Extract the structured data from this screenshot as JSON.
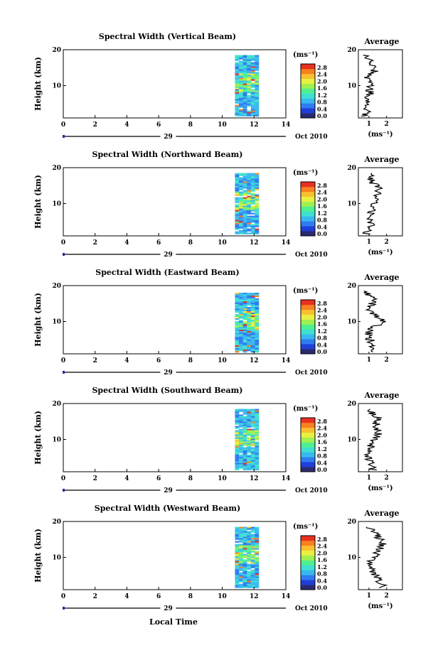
{
  "chart_data": [
    {
      "type": "heatmap",
      "title": "Spectral Width (Vertical Beam)",
      "ylabel": "Height (km)",
      "x_ticks": [
        "0",
        "2",
        "4",
        "6",
        "8",
        "10",
        "12",
        "14"
      ],
      "xlim": [
        0,
        14
      ],
      "y_ticks": [
        "20",
        "10"
      ],
      "ylim": [
        1,
        20
      ],
      "date_day": "29",
      "date_suffix": "Oct 2010",
      "data_time_range": [
        10.8,
        12.3
      ],
      "data_height_range": [
        1.5,
        18.5
      ],
      "colorbar": {
        "unit": "(ms⁻¹)",
        "ticks": [
          "2.8",
          "2.4",
          "2.0",
          "1.6",
          "1.2",
          "0.8",
          "0.4",
          "0.0"
        ],
        "range": [
          0,
          2.8
        ]
      },
      "profile": {
        "title": "Average",
        "x_ticks": [
          "1",
          "2"
        ],
        "xlim": [
          0.4,
          2.9
        ],
        "xlabel": "(ms⁻¹)",
        "y_ticks": [
          "20",
          "10"
        ],
        "heights": [
          2,
          4,
          6,
          8,
          10,
          12,
          14,
          16,
          18
        ],
        "values": [
          0.8,
          1.0,
          0.9,
          1.1,
          1.0,
          0.9,
          1.3,
          1.1,
          0.9
        ]
      }
    },
    {
      "type": "heatmap",
      "title": "Spectral Width (Northward Beam)",
      "ylabel": "Height (km)",
      "x_ticks": [
        "0",
        "2",
        "4",
        "6",
        "8",
        "10",
        "12",
        "14"
      ],
      "xlim": [
        0,
        14
      ],
      "y_ticks": [
        "20",
        "10"
      ],
      "ylim": [
        1,
        20
      ],
      "date_day": "29",
      "date_suffix": "Oct 2010",
      "data_time_range": [
        10.8,
        12.3
      ],
      "data_height_range": [
        1.5,
        18.5
      ],
      "colorbar": {
        "unit": "(ms⁻¹)",
        "ticks": [
          "2.8",
          "2.4",
          "2.0",
          "1.6",
          "1.2",
          "0.8",
          "0.4",
          "0.0"
        ],
        "range": [
          0,
          2.8
        ]
      },
      "profile": {
        "title": "Average",
        "x_ticks": [
          "1",
          "2"
        ],
        "xlim": [
          0.4,
          2.9
        ],
        "xlabel": "(ms⁻¹)",
        "y_ticks": [
          "20",
          "10"
        ],
        "heights": [
          2,
          4,
          6,
          8,
          10,
          12,
          14,
          16,
          18
        ],
        "values": [
          0.9,
          1.1,
          1.0,
          1.2,
          1.3,
          1.4,
          1.6,
          1.2,
          1.0
        ]
      }
    },
    {
      "type": "heatmap",
      "title": "Spectral Width (Eastward Beam)",
      "ylabel": "Height (km)",
      "x_ticks": [
        "0",
        "2",
        "4",
        "6",
        "8",
        "10",
        "12",
        "14"
      ],
      "xlim": [
        0,
        14
      ],
      "y_ticks": [
        "20",
        "10"
      ],
      "ylim": [
        1,
        20
      ],
      "date_day": "29",
      "date_suffix": "Oct 2010",
      "data_time_range": [
        10.8,
        12.3
      ],
      "data_height_range": [
        1.5,
        18.0
      ],
      "colorbar": {
        "unit": "(ms⁻¹)",
        "ticks": [
          "2.8",
          "2.4",
          "2.0",
          "1.6",
          "1.2",
          "0.8",
          "0.4",
          "0.0"
        ],
        "range": [
          0,
          2.8
        ]
      },
      "profile": {
        "title": "Average",
        "x_ticks": [
          "1",
          "2"
        ],
        "xlim": [
          0.4,
          2.9
        ],
        "xlabel": "",
        "y_ticks": [
          "20",
          "10"
        ],
        "heights": [
          2,
          4,
          6,
          8,
          10,
          12,
          14,
          16,
          18
        ],
        "values": [
          1.0,
          1.2,
          0.9,
          1.1,
          1.8,
          1.2,
          1.0,
          1.3,
          0.9
        ]
      }
    },
    {
      "type": "heatmap",
      "title": "Spectral Width (Southward Beam)",
      "ylabel": "Height (km)",
      "x_ticks": [
        "0",
        "2",
        "4",
        "6",
        "8",
        "10",
        "12",
        "14"
      ],
      "xlim": [
        0,
        14
      ],
      "y_ticks": [
        "20",
        "10"
      ],
      "ylim": [
        1,
        20
      ],
      "date_day": "29",
      "date_suffix": "Oct 2010",
      "data_time_range": [
        10.8,
        12.3
      ],
      "data_height_range": [
        1.5,
        18.5
      ],
      "colorbar": {
        "unit": "(ms⁻¹)",
        "ticks": [
          "2.8",
          "2.4",
          "2.0",
          "1.6",
          "1.2",
          "0.8",
          "0.4",
          "0.0"
        ],
        "range": [
          0,
          2.8
        ]
      },
      "profile": {
        "title": "Average",
        "x_ticks": [
          "1",
          "2"
        ],
        "xlim": [
          0.4,
          2.9
        ],
        "xlabel": "(ms⁻¹)",
        "y_ticks": [
          "20",
          "10"
        ],
        "heights": [
          2,
          4,
          6,
          8,
          10,
          12,
          14,
          16,
          18
        ],
        "values": [
          1.2,
          1.0,
          0.9,
          1.1,
          1.3,
          1.6,
          1.4,
          1.5,
          1.0
        ]
      }
    },
    {
      "type": "heatmap",
      "title": "Spectral Width (Westward Beam)",
      "ylabel": "Height (km)",
      "x_ticks": [
        "0",
        "2",
        "4",
        "6",
        "8",
        "10",
        "12",
        "14"
      ],
      "xlim": [
        0,
        14
      ],
      "y_ticks": [
        "20",
        "10"
      ],
      "ylim": [
        1,
        20
      ],
      "date_day": "29",
      "date_suffix": "Oct 2010",
      "data_time_range": [
        10.8,
        12.3
      ],
      "data_height_range": [
        1.5,
        18.5
      ],
      "colorbar": {
        "unit": "(ms⁻¹)",
        "ticks": [
          "2.8",
          "2.4",
          "2.0",
          "1.6",
          "1.2",
          "0.8",
          "0.4",
          "0.0"
        ],
        "range": [
          0,
          2.8
        ]
      },
      "profile": {
        "title": "Average",
        "x_ticks": [
          "1",
          "2"
        ],
        "xlim": [
          0.4,
          2.9
        ],
        "xlabel": "(ms⁻¹)",
        "y_ticks": [
          "20",
          "10"
        ],
        "heights": [
          2,
          4,
          6,
          8,
          10,
          12,
          14,
          16,
          18
        ],
        "values": [
          1.8,
          1.5,
          1.2,
          1.0,
          1.3,
          1.6,
          1.8,
          1.5,
          1.1
        ]
      }
    }
  ],
  "figure": {
    "xlabel": "Local Time",
    "colormap": [
      "#2a2a70",
      "#1f3fd8",
      "#2f7cf0",
      "#39b8f0",
      "#3fe0d0",
      "#4ef090",
      "#a0f050",
      "#e8f040",
      "#f8c030",
      "#f88020",
      "#e83020"
    ]
  }
}
